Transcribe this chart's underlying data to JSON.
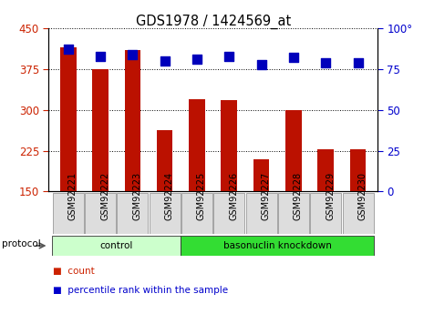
{
  "title": "GDS1978 / 1424569_at",
  "samples": [
    "GSM92221",
    "GSM92222",
    "GSM92223",
    "GSM92224",
    "GSM92225",
    "GSM92226",
    "GSM92227",
    "GSM92228",
    "GSM92229",
    "GSM92230"
  ],
  "counts": [
    415,
    375,
    410,
    262,
    320,
    318,
    210,
    300,
    228,
    228
  ],
  "percentile_ranks": [
    87,
    83,
    84,
    80,
    81,
    83,
    78,
    82,
    79,
    79
  ],
  "ylim_left": [
    150,
    450
  ],
  "ylim_right": [
    0,
    100
  ],
  "yticks_left": [
    150,
    225,
    300,
    375,
    450
  ],
  "yticks_right": [
    0,
    25,
    50,
    75,
    100
  ],
  "bar_color": "#bb1100",
  "dot_color": "#0000bb",
  "groups": [
    {
      "label": "control",
      "start": 0,
      "end": 4,
      "color": "#ccffcc"
    },
    {
      "label": "basonuclin knockdown",
      "start": 4,
      "end": 10,
      "color": "#33dd33"
    }
  ],
  "tick_color_left": "#cc2200",
  "tick_color_right": "#0000cc",
  "protocol_label": "protocol",
  "legend_items": [
    {
      "label": "count",
      "color": "#cc2200"
    },
    {
      "label": "percentile rank within the sample",
      "color": "#0000cc"
    }
  ],
  "bar_width": 0.5,
  "dot_size": 45,
  "dot_marker": "s",
  "xtick_bg": "#dddddd",
  "fig_bg": "#ffffff"
}
